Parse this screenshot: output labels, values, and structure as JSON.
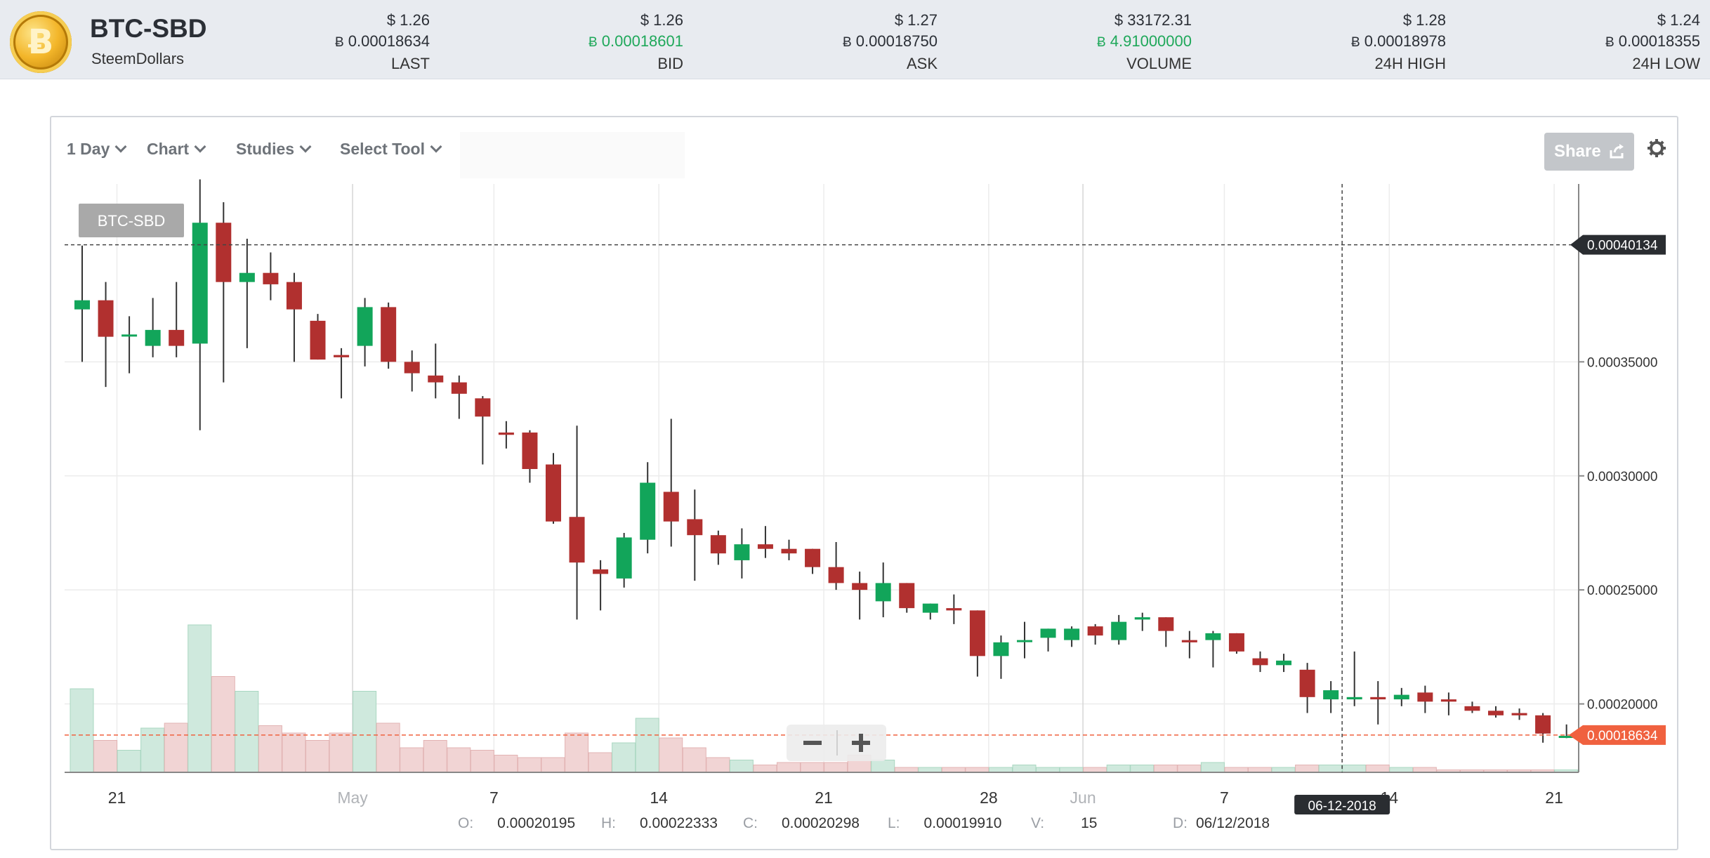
{
  "ticker": {
    "pair": "BTC-SBD",
    "name": "SteemDollars",
    "coin_glyph": "Ƀ",
    "stats": [
      {
        "usd": "$ 1.26",
        "btc_symbol": "Ƀ",
        "btc": "0.00018634",
        "label": "LAST",
        "highlight": false
      },
      {
        "usd": "$ 1.26",
        "btc_symbol": "Ƀ",
        "btc": "0.00018601",
        "label": "BID",
        "highlight": true
      },
      {
        "usd": "$ 1.27",
        "btc_symbol": "Ƀ",
        "btc": "0.00018750",
        "label": "ASK",
        "highlight": false
      },
      {
        "usd": "$ 33172.31",
        "btc_symbol": "Ƀ",
        "btc": "4.91000000",
        "label": "VOLUME",
        "highlight": true
      },
      {
        "usd": "$ 1.28",
        "btc_symbol": "Ƀ",
        "btc": "0.00018978",
        "label": "24H HIGH",
        "highlight": false
      },
      {
        "usd": "$ 1.24",
        "btc_symbol": "Ƀ",
        "btc": "0.00018355",
        "label": "24H LOW",
        "highlight": false
      }
    ]
  },
  "toolbar": {
    "interval": "1 Day",
    "chart": "Chart",
    "studies": "Studies",
    "select_tool": "Select Tool",
    "share": "Share",
    "share_icon": "share-arrow-icon",
    "settings_icon": "gear-icon"
  },
  "zoom": {
    "minus": "−",
    "plus": "+"
  },
  "crosshair": {
    "date_label": "06-12-2018",
    "price_label": "0.00040134"
  },
  "ohlc": {
    "o_key": "O:",
    "o": "0.00020195",
    "h_key": "H:",
    "h": "0.00022333",
    "c_key": "C:",
    "c": "0.00020298",
    "l_key": "L:",
    "l": "0.00019910",
    "v_key": "V:",
    "v": "15",
    "d_key": "D:",
    "d": "06/12/2018"
  },
  "colors": {
    "up": "#12a55a",
    "down": "#b1302f",
    "up_vol": "#cfe9dd",
    "down_vol": "#f1d4d4",
    "last_price": "#f0613f"
  },
  "chart_data": {
    "type": "candlestick",
    "legend_label": "BTC-SBD",
    "ylim": [
      0.00017,
      0.000428
    ],
    "y_ticks": [
      "0.00020000",
      "0.00025000",
      "0.00030000",
      "0.00035000"
    ],
    "y_tick_values": [
      0.0002,
      0.00025,
      0.0003,
      0.00035
    ],
    "x_ticks": [
      {
        "label": "21",
        "index": 1
      },
      {
        "label": "May",
        "index": 11
      },
      {
        "label": "7",
        "index": 17
      },
      {
        "label": "14",
        "index": 24
      },
      {
        "label": "21",
        "index": 31
      },
      {
        "label": "28",
        "index": 38
      },
      {
        "label": "Jun",
        "index": 42
      },
      {
        "label": "7",
        "index": 48
      },
      {
        "label": "14",
        "index": 55
      },
      {
        "label": "21",
        "index": 62
      }
    ],
    "last_price": 0.00018634,
    "last_price_label": "0.00018634",
    "candles": [
      [
        0.000373,
        0.000401,
        0.00035,
        0.000377,
        34
      ],
      [
        0.000377,
        0.000385,
        0.000339,
        0.000361,
        13
      ],
      [
        0.000362,
        0.00037,
        0.000345,
        0.000362,
        9
      ],
      [
        0.000357,
        0.000378,
        0.000352,
        0.000364,
        18
      ],
      [
        0.000364,
        0.000385,
        0.000352,
        0.000357,
        20
      ],
      [
        0.000358,
        0.00043,
        0.00032,
        0.000411,
        60
      ],
      [
        0.000411,
        0.00042,
        0.000341,
        0.000385,
        39
      ],
      [
        0.000385,
        0.000404,
        0.000356,
        0.000389,
        33
      ],
      [
        0.000389,
        0.000398,
        0.000377,
        0.000384,
        19
      ],
      [
        0.000385,
        0.000389,
        0.00035,
        0.000373,
        16
      ],
      [
        0.000368,
        0.000371,
        0.000351,
        0.000351,
        13
      ],
      [
        0.000353,
        0.000356,
        0.000334,
        0.000352,
        16
      ],
      [
        0.000357,
        0.000378,
        0.000348,
        0.000374,
        33
      ],
      [
        0.000374,
        0.000376,
        0.000347,
        0.00035,
        20
      ],
      [
        0.00035,
        0.000355,
        0.000337,
        0.000345,
        10
      ],
      [
        0.000344,
        0.000358,
        0.000334,
        0.000341,
        13
      ],
      [
        0.000341,
        0.000344,
        0.000325,
        0.000336,
        10
      ],
      [
        0.000334,
        0.000335,
        0.000305,
        0.000326,
        9
      ],
      [
        0.000319,
        0.000324,
        0.000312,
        0.000318,
        7
      ],
      [
        0.000319,
        0.00032,
        0.000297,
        0.000303,
        6
      ],
      [
        0.000305,
        0.00031,
        0.000279,
        0.00028,
        6
      ],
      [
        0.000282,
        0.000322,
        0.000237,
        0.000262,
        16
      ],
      [
        0.000259,
        0.000263,
        0.000241,
        0.000257,
        8
      ],
      [
        0.000255,
        0.000275,
        0.000251,
        0.000273,
        12
      ],
      [
        0.000272,
        0.000306,
        0.000266,
        0.000297,
        22
      ],
      [
        0.000293,
        0.000325,
        0.000269,
        0.00028,
        14
      ],
      [
        0.000281,
        0.000294,
        0.000254,
        0.000274,
        10
      ],
      [
        0.000274,
        0.000276,
        0.000261,
        0.000266,
        6
      ],
      [
        0.000263,
        0.000277,
        0.000255,
        0.00027,
        5
      ],
      [
        0.00027,
        0.000278,
        0.000264,
        0.000268,
        3
      ],
      [
        0.000268,
        0.000272,
        0.000263,
        0.000266,
        4
      ],
      [
        0.000268,
        0.000268,
        0.000257,
        0.00026,
        4
      ],
      [
        0.00026,
        0.000271,
        0.00025,
        0.000253,
        4
      ],
      [
        0.000253,
        0.000258,
        0.000237,
        0.00025,
        7
      ],
      [
        0.000245,
        0.000262,
        0.000238,
        0.000253,
        5
      ],
      [
        0.000253,
        0.000253,
        0.00024,
        0.000242,
        2
      ],
      [
        0.00024,
        0.000244,
        0.000237,
        0.000244,
        2
      ],
      [
        0.000242,
        0.000248,
        0.000235,
        0.000241,
        2
      ],
      [
        0.000241,
        0.000241,
        0.000212,
        0.000221,
        2
      ],
      [
        0.000221,
        0.00023,
        0.000211,
        0.000227,
        2
      ],
      [
        0.000228,
        0.000236,
        0.00022,
        0.000228,
        3
      ],
      [
        0.000229,
        0.000233,
        0.000223,
        0.000233,
        2
      ],
      [
        0.000228,
        0.000234,
        0.000225,
        0.000233,
        2
      ],
      [
        0.000234,
        0.000235,
        0.000226,
        0.00023,
        2
      ],
      [
        0.000228,
        0.000239,
        0.000226,
        0.000236,
        3
      ],
      [
        0.000237,
        0.00024,
        0.000232,
        0.000238,
        3
      ],
      [
        0.000238,
        0.000238,
        0.000225,
        0.000232,
        3
      ],
      [
        0.000228,
        0.000232,
        0.00022,
        0.000227,
        3
      ],
      [
        0.000228,
        0.000232,
        0.000216,
        0.000231,
        4
      ],
      [
        0.000231,
        0.000231,
        0.000222,
        0.000223,
        2
      ],
      [
        0.00022,
        0.000223,
        0.000214,
        0.000217,
        2
      ],
      [
        0.000217,
        0.000222,
        0.000214,
        0.000219,
        2
      ],
      [
        0.000215,
        0.000218,
        0.000196,
        0.000203,
        3
      ],
      [
        0.000202,
        0.00021,
        0.000196,
        0.000206,
        3
      ],
      [
        0.000202,
        0.000223,
        0.000199,
        0.000203,
        3
      ],
      [
        0.000203,
        0.00021,
        0.000191,
        0.000202,
        3
      ],
      [
        0.000202,
        0.000207,
        0.000199,
        0.000204,
        2
      ],
      [
        0.000205,
        0.000208,
        0.000196,
        0.000201,
        2
      ],
      [
        0.000202,
        0.000205,
        0.000195,
        0.000201,
        1
      ],
      [
        0.000199,
        0.000201,
        0.000196,
        0.000197,
        1
      ],
      [
        0.000197,
        0.000199,
        0.000194,
        0.000195,
        1
      ],
      [
        0.000196,
        0.000198,
        0.000193,
        0.000195,
        1
      ],
      [
        0.000195,
        0.000196,
        0.000183,
        0.000187,
        1
      ],
      [
        0.000186,
        0.000191,
        0.000185,
        0.000186,
        1
      ]
    ]
  }
}
